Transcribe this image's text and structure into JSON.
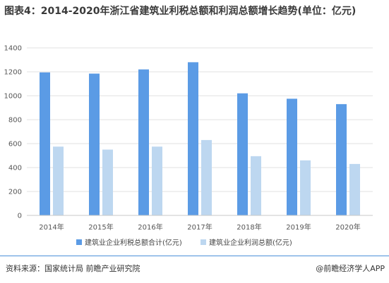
{
  "title": "图表4：2014-2020年浙江省建筑业利税总额和利润总额增长趋势(单位：亿元)",
  "footer": {
    "source": "资料来源：国家统计局 前瞻产业研究院",
    "brand": "@前瞻经济学人APP"
  },
  "colors": {
    "series_1": "#5b9be5",
    "series_2": "#bdd7f0",
    "grid": "#e0e0e0",
    "axis_text": "#555555"
  },
  "chart_data": {
    "type": "bar",
    "categories": [
      "2014年",
      "2015年",
      "2016年",
      "2017年",
      "2018年",
      "2019年",
      "2020年"
    ],
    "series": [
      {
        "name": "建筑业企业利税总额合计(亿元)",
        "values": [
          1195,
          1185,
          1220,
          1280,
          1020,
          975,
          930
        ]
      },
      {
        "name": "建筑业企业利润总额(亿元)",
        "values": [
          575,
          550,
          575,
          630,
          495,
          460,
          430
        ]
      }
    ],
    "ylim": [
      0,
      1400
    ],
    "yticks": [
      "0",
      "200",
      "400",
      "600",
      "800",
      "1000",
      "1200",
      "1400"
    ],
    "grid": true,
    "legend_position": "bottom"
  }
}
